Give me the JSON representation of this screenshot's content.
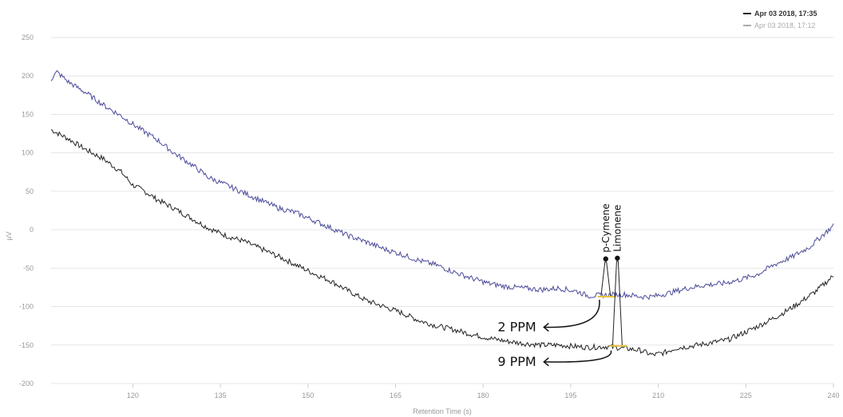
{
  "chart_data": {
    "type": "line",
    "title": "",
    "xlabel": "Retention Time (s)",
    "ylabel": "μV",
    "xlim": [
      106,
      240
    ],
    "ylim": [
      -200,
      250
    ],
    "xticks": [
      120,
      135,
      150,
      165,
      180,
      195,
      210,
      225,
      240
    ],
    "yticks": [
      -200,
      -150,
      -100,
      -50,
      0,
      50,
      100,
      150,
      200,
      250
    ],
    "grid": "horizontal",
    "legend": "top-right",
    "series": [
      {
        "name": "Apr 03 2018, 17:35",
        "color": "#222222",
        "anchors": [
          [
            106,
            130
          ],
          [
            109,
            118
          ],
          [
            112,
            104
          ],
          [
            115,
            92
          ],
          [
            118,
            75
          ],
          [
            120,
            58
          ],
          [
            122,
            50
          ],
          [
            124,
            40
          ],
          [
            127,
            28
          ],
          [
            130,
            15
          ],
          [
            133,
            2
          ],
          [
            136,
            -8
          ],
          [
            139,
            -15
          ],
          [
            142,
            -25
          ],
          [
            145,
            -35
          ],
          [
            148,
            -46
          ],
          [
            151,
            -57
          ],
          [
            154,
            -67
          ],
          [
            157,
            -80
          ],
          [
            160,
            -92
          ],
          [
            163,
            -100
          ],
          [
            166,
            -108
          ],
          [
            169,
            -118
          ],
          [
            172,
            -125
          ],
          [
            175,
            -130
          ],
          [
            178,
            -136
          ],
          [
            181,
            -141
          ],
          [
            184,
            -145
          ],
          [
            187,
            -148
          ],
          [
            190,
            -150
          ],
          [
            193,
            -150
          ],
          [
            196,
            -152
          ],
          [
            198,
            -153
          ],
          [
            201,
            -152
          ],
          [
            204,
            -154
          ],
          [
            207,
            -157
          ],
          [
            209,
            -163
          ],
          [
            211,
            -160
          ],
          [
            213,
            -154
          ],
          [
            216,
            -151
          ],
          [
            219,
            -147
          ],
          [
            222,
            -143
          ],
          [
            225,
            -133
          ],
          [
            228,
            -122
          ],
          [
            231,
            -110
          ],
          [
            234,
            -96
          ],
          [
            237,
            -80
          ],
          [
            240,
            -60
          ]
        ]
      },
      {
        "name": "Apr 03 2018, 17:12",
        "color": "#4a4a9a",
        "anchors": [
          [
            106,
            196
          ],
          [
            107,
            205
          ],
          [
            109,
            192
          ],
          [
            112,
            178
          ],
          [
            115,
            162
          ],
          [
            118,
            148
          ],
          [
            121,
            132
          ],
          [
            124,
            118
          ],
          [
            127,
            100
          ],
          [
            130,
            85
          ],
          [
            133,
            68
          ],
          [
            136,
            58
          ],
          [
            139,
            48
          ],
          [
            142,
            38
          ],
          [
            145,
            28
          ],
          [
            148,
            22
          ],
          [
            151,
            12
          ],
          [
            154,
            2
          ],
          [
            157,
            -8
          ],
          [
            160,
            -16
          ],
          [
            163,
            -25
          ],
          [
            166,
            -32
          ],
          [
            169,
            -40
          ],
          [
            172,
            -46
          ],
          [
            175,
            -55
          ],
          [
            178,
            -63
          ],
          [
            181,
            -70
          ],
          [
            184,
            -74
          ],
          [
            187,
            -76
          ],
          [
            190,
            -78
          ],
          [
            193,
            -76
          ],
          [
            196,
            -80
          ],
          [
            198,
            -86
          ],
          [
            201,
            -85
          ],
          [
            204,
            -84
          ],
          [
            207,
            -87
          ],
          [
            209,
            -87
          ],
          [
            212,
            -82
          ],
          [
            215,
            -76
          ],
          [
            218,
            -72
          ],
          [
            221,
            -70
          ],
          [
            224,
            -65
          ],
          [
            227,
            -58
          ],
          [
            230,
            -45
          ],
          [
            233,
            -35
          ],
          [
            236,
            -22
          ],
          [
            238,
            -8
          ],
          [
            240,
            5
          ]
        ]
      }
    ],
    "peaks": [
      {
        "label": "p-Cymene",
        "x": 201,
        "base_y": -87,
        "top_y": -38
      },
      {
        "label": "Limonene",
        "x": 203,
        "base_y": -151,
        "top_y": -37
      }
    ],
    "annotations": [
      {
        "text": "2 PPM",
        "x": 190,
        "y": -132
      },
      {
        "text": "9 PPM",
        "x": 190,
        "y": -177
      }
    ],
    "colors": {
      "grid": "#e6e6e6",
      "peak_base": "#e8c53c",
      "annotation": "#111111"
    }
  }
}
